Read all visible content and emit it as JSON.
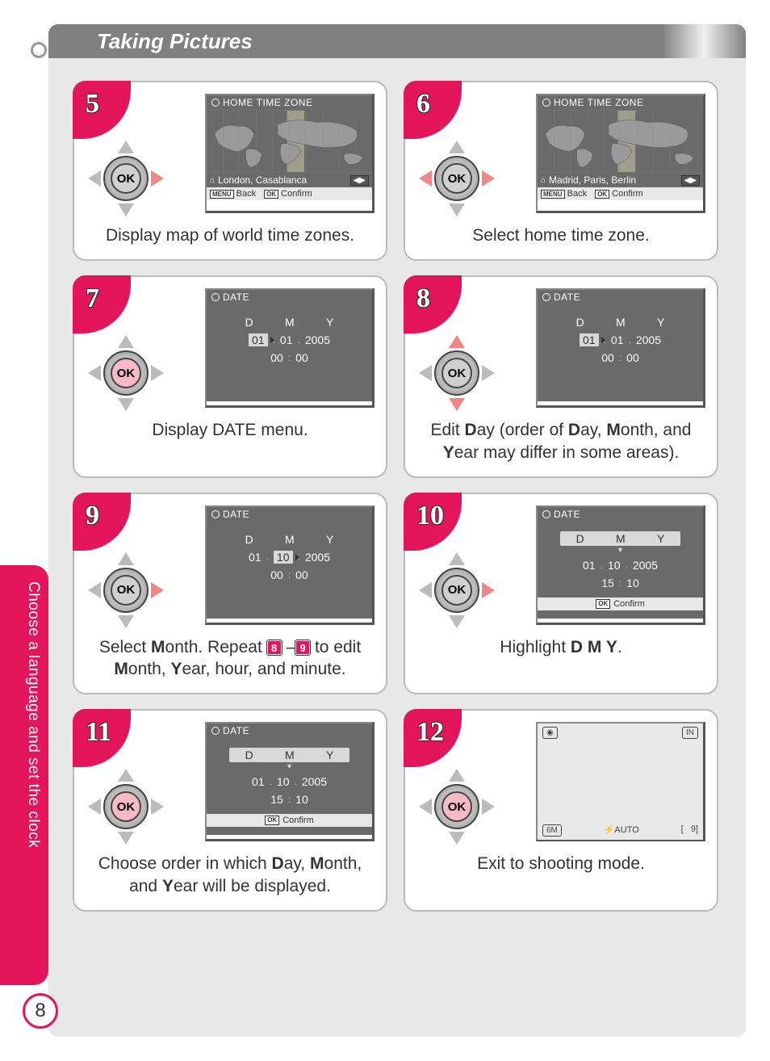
{
  "colors": {
    "accent": "#e4145a",
    "page_bg": "#e8e8e8",
    "screen_bg": "#6a6a6a",
    "card_border": "#bbbbbb"
  },
  "header": {
    "title": "Taking Pictures"
  },
  "side_tab": {
    "text": "Choose a language and set the clock"
  },
  "page_number": "8",
  "ok_label": "OK",
  "screens": {
    "timezone_title": "HOME TIME ZONE",
    "date_title": "DATE",
    "back_label": "Back",
    "confirm_label": "Confirm",
    "menu_key": "MENU",
    "ok_key": "OK",
    "dmy_labels": [
      "D",
      "M",
      "Y"
    ],
    "shoot": {
      "size": "6M",
      "flash": "AUTO",
      "in": "IN",
      "count": "9"
    }
  },
  "steps": [
    {
      "num": "5",
      "type": "timezone",
      "city": "London, Casablanca",
      "ctrl_highlight": "right",
      "caption_html": "Display map of world time zones."
    },
    {
      "num": "6",
      "type": "timezone",
      "city": "Madrid, Paris, Berlin",
      "ctrl_highlight": "lr",
      "caption_html": "Select home time zone."
    },
    {
      "num": "7",
      "type": "date",
      "date": {
        "d": "01",
        "m": "01",
        "y": "2005",
        "hh": "00",
        "mm": "00",
        "hl_field": "d"
      },
      "ctrl_highlight": "center",
      "caption_html": "Display DATE menu."
    },
    {
      "num": "8",
      "type": "date",
      "date": {
        "d": "01",
        "m": "01",
        "y": "2005",
        "hh": "00",
        "mm": "00",
        "hl_field": "d"
      },
      "ctrl_highlight": "ud",
      "caption_html": "Edit <b>D</b>ay (order of <b>D</b>ay, <b>M</b>onth, and <b>Y</b>ear may differ in some areas)."
    },
    {
      "num": "9",
      "type": "date",
      "date": {
        "d": "01",
        "m": "10",
        "y": "2005",
        "hh": "00",
        "mm": "00",
        "hl_field": "m"
      },
      "ctrl_highlight": "right",
      "caption_html": "Select <b>M</b>onth.  Repeat <span class=\"tiny-badge\">8</span> –<span class=\"tiny-badge\">9</span> to edit <b>M</b>onth, <b>Y</b>ear, hour, and minute."
    },
    {
      "num": "10",
      "type": "date",
      "date": {
        "d": "01",
        "m": "10",
        "y": "2005",
        "hh": "15",
        "mm": "10",
        "hl_row": true,
        "confirm": true
      },
      "ctrl_highlight": "right",
      "caption_html": "Highlight <b>D M Y</b>."
    },
    {
      "num": "11",
      "type": "date",
      "date": {
        "d": "01",
        "m": "10",
        "y": "2005",
        "hh": "15",
        "mm": "10",
        "hl_row": true,
        "confirm": true
      },
      "ctrl_highlight": "center",
      "caption_html": "Choose order in which <b>D</b>ay, <b>M</b>onth, and <b>Y</b>ear will be displayed."
    },
    {
      "num": "12",
      "type": "shoot",
      "ctrl_highlight": "center",
      "caption_html": "Exit to shooting mode."
    }
  ]
}
